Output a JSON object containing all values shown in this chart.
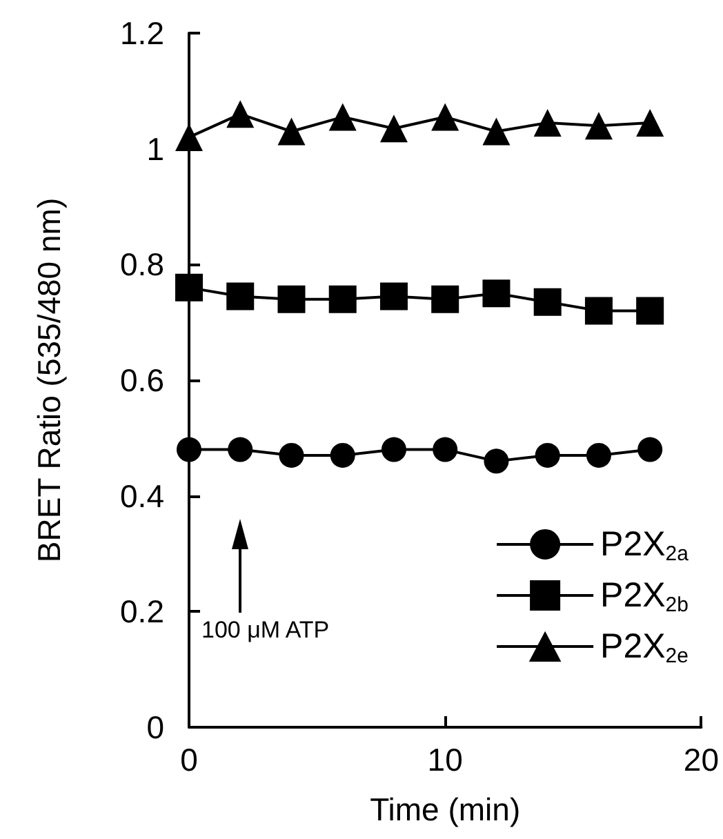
{
  "chart_data": {
    "type": "line",
    "xlabel": "Time (min)",
    "ylabel": "BRET Ratio (535/480 nm)",
    "x": [
      0,
      2,
      4,
      6,
      8,
      10,
      12,
      14,
      16,
      18
    ],
    "series": [
      {
        "name": "P2X$_{2a}$",
        "color": "#000000",
        "marker": "circle",
        "values": [
          0.48,
          0.48,
          0.47,
          0.47,
          0.48,
          0.48,
          0.46,
          0.47,
          0.47,
          0.48
        ]
      },
      {
        "name": "P2X$_{2b}$",
        "color": "#000000",
        "marker": "square",
        "values": [
          0.76,
          0.745,
          0.74,
          0.74,
          0.745,
          0.74,
          0.75,
          0.735,
          0.72,
          0.72
        ]
      },
      {
        "name": "P2X$_{2e}$",
        "color": "#000000",
        "marker": "triangle",
        "values": [
          1.02,
          1.06,
          1.03,
          1.055,
          1.035,
          1.055,
          1.03,
          1.045,
          1.04,
          1.045
        ]
      }
    ],
    "xlim": [
      0,
      20
    ],
    "xticks": [
      0,
      10,
      20
    ],
    "ylim": [
      0,
      1.2
    ],
    "yticks": [
      0,
      {
        "value": 0.2,
        "label": "0.2"
      },
      {
        "value": 0.4,
        "label": "0.4"
      },
      {
        "value": 0.6,
        "label": "0.6"
      },
      {
        "value": 0.8,
        "label": "0.8"
      },
      1,
      {
        "value": 1.2,
        "label": "1.2"
      }
    ],
    "grid": false,
    "legend": "bottom right",
    "line_style": "solid",
    "annotations": [
      "100 μM ATP"
    ]
  }
}
